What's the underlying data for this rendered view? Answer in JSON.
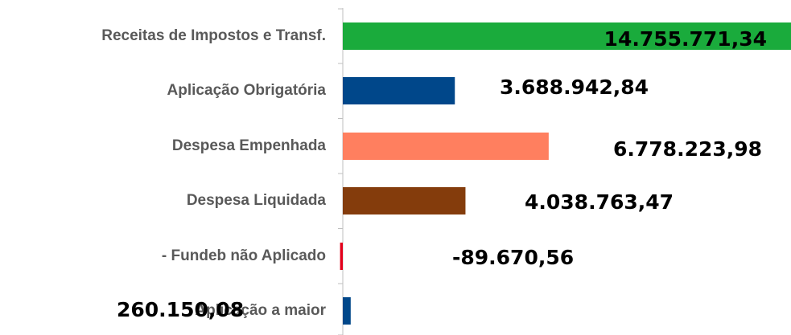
{
  "chart_data": {
    "type": "bar",
    "orientation": "horizontal",
    "categories": [
      "Receitas de Impostos e Transf.",
      "Aplicação Obrigatória",
      "Despesa Empenhada",
      "Despesa Liquidada",
      "- Fundeb não Aplicado",
      "Aplicação a maior"
    ],
    "values": [
      14755771.34,
      3688942.84,
      6778223.98,
      4038763.47,
      -89670.56,
      260150.08
    ],
    "value_labels": [
      "14.755.771,34",
      "3.688.942,84",
      "6.778.223,98",
      "4.038.763,47",
      "-89.670,56",
      "260.150,08"
    ],
    "colors": [
      "#1aab3c",
      "#00478a",
      "#ff7f5f",
      "#843c0c",
      "#e3001b",
      "#00478a"
    ],
    "xlim": [
      0,
      14755771.34
    ]
  }
}
